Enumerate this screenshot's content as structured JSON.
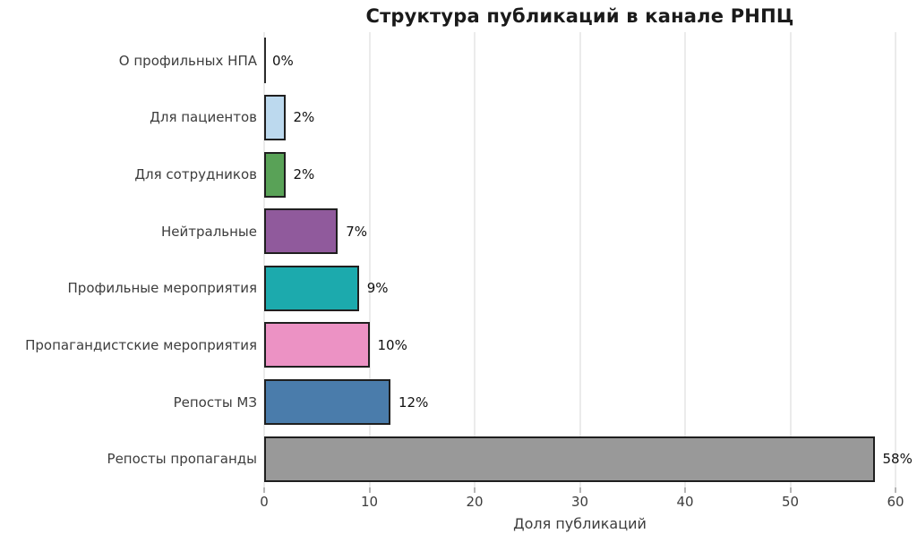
{
  "title": "Структура публикаций в канале РНПЦ",
  "chart_data": {
    "type": "bar",
    "orientation": "horizontal",
    "title": "Структура публикаций в канале РНПЦ",
    "xlabel": "Доля публикаций",
    "ylabel": "",
    "categories": [
      "О профильных НПА",
      "Для пациентов",
      "Для сотрудников",
      "Нейтральные",
      "Профильные мероприятия",
      "Пропагандистские мероприятия",
      "Репосты МЗ",
      "Репосты пропаганды"
    ],
    "values": [
      0,
      2,
      2,
      7,
      9,
      10,
      12,
      58
    ],
    "value_labels": [
      "0%",
      "2%",
      "2%",
      "7%",
      "9%",
      "10%",
      "12%",
      "58%"
    ],
    "bar_colors": [
      "#ffffff",
      "#bcd9ee",
      "#59a257",
      "#905a9c",
      "#1caaad",
      "#ec92c4",
      "#4a7cab",
      "#999999"
    ],
    "bar_edge_color": "#1f1f1f",
    "zero_bar_line_color": "#2b2b2b",
    "xlim": [
      0,
      60
    ],
    "xticks": [
      0,
      10,
      20,
      30,
      40,
      50,
      60
    ],
    "grid": "vertical",
    "grid_color": "#ebebeb",
    "legend": "none",
    "background": "#ffffff"
  }
}
